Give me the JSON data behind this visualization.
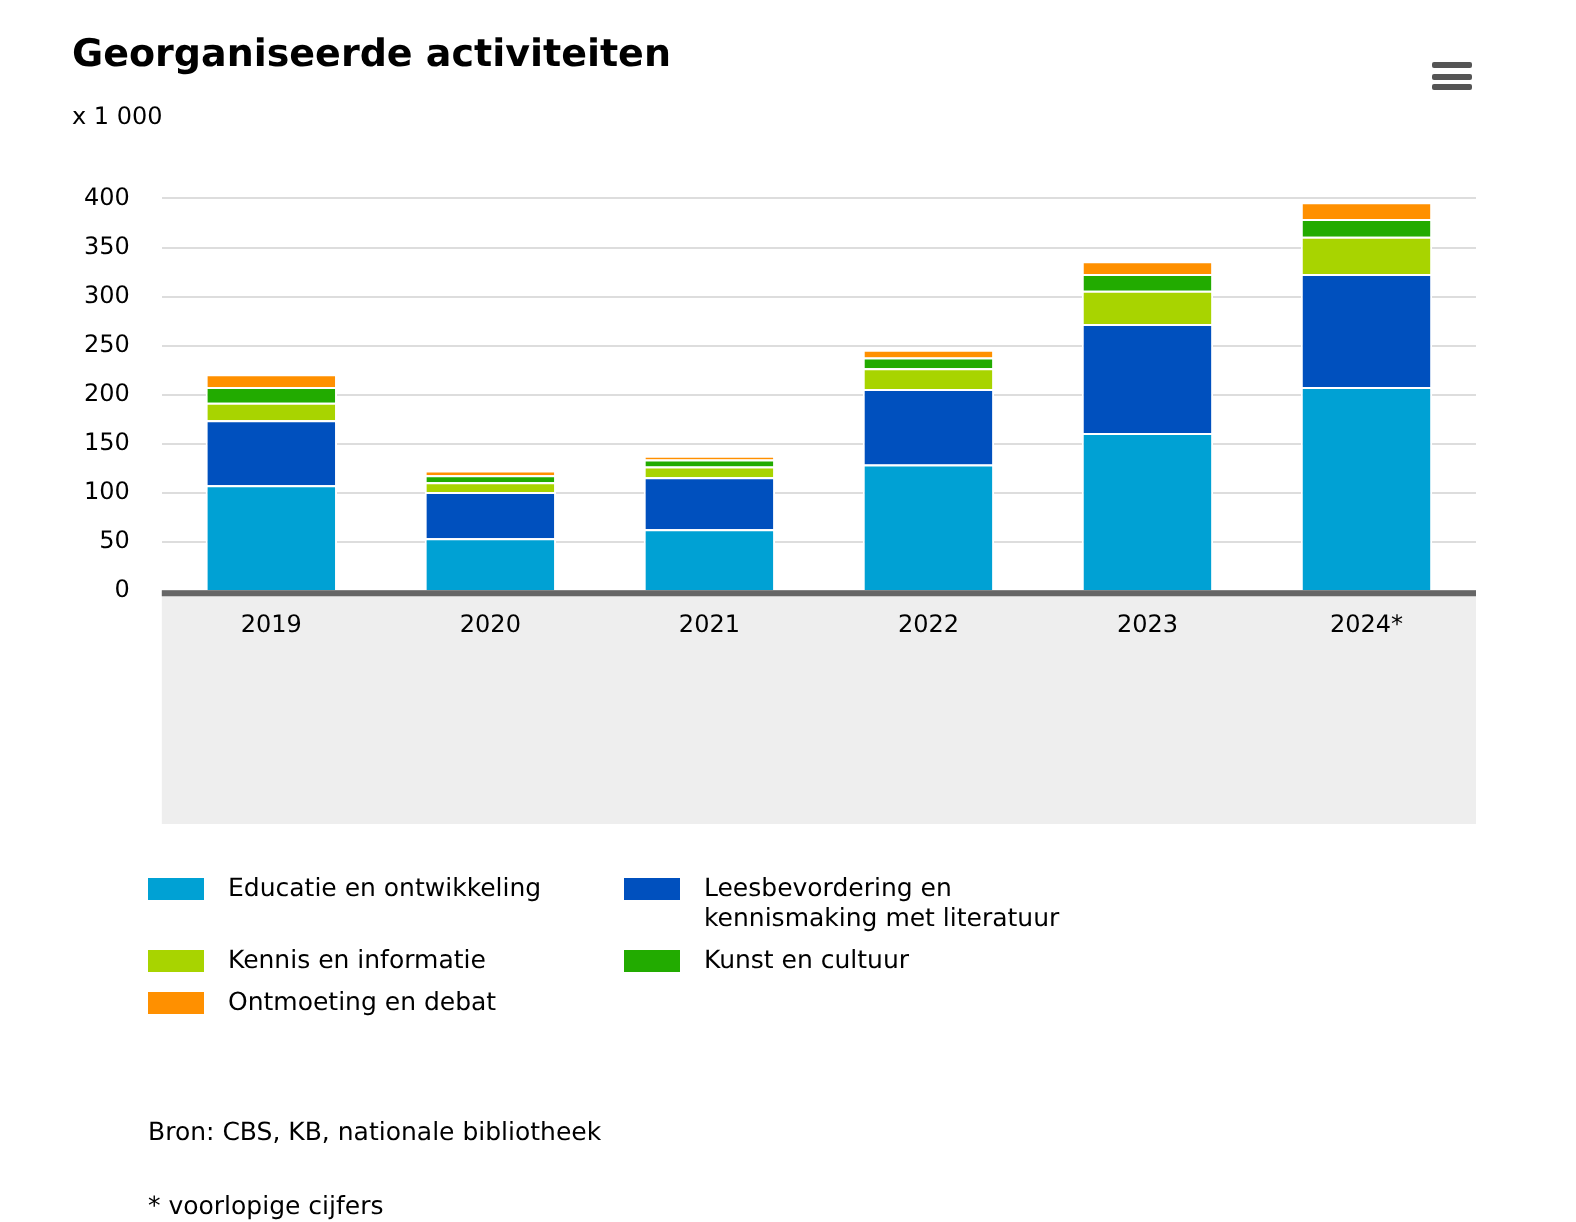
{
  "chart_data": {
    "type": "bar",
    "title": "Georganiseerde activiteiten",
    "ylabel": "x 1 000",
    "categories": [
      "2019",
      "2020",
      "2021",
      "2022",
      "2023",
      "2024*"
    ],
    "stacked": true,
    "ylim": [
      0,
      400
    ],
    "yticks": [
      0,
      50,
      100,
      150,
      200,
      250,
      300,
      350,
      400
    ],
    "grid": "y",
    "legend": "bottom",
    "series": [
      {
        "name": "Educatie en ontwikkeling",
        "color": "#00a1d4",
        "values": [
          108,
          54,
          63,
          129,
          161,
          208
        ]
      },
      {
        "name": "Leesbevordering en kennismaking met literatuur",
        "color": "#0050be",
        "values": [
          66,
          47,
          53,
          77,
          111,
          115
        ]
      },
      {
        "name": "Kennis en informatie",
        "color": "#a8d400",
        "values": [
          18,
          10,
          11,
          21,
          34,
          38
        ]
      },
      {
        "name": "Kunst en cultuur",
        "color": "#22ab00",
        "values": [
          16,
          7,
          7,
          11,
          17,
          18
        ]
      },
      {
        "name": "Ontmoeting en debat",
        "color": "#ff9000",
        "values": [
          13,
          5,
          4,
          8,
          13,
          17
        ]
      }
    ],
    "annotations": [
      "Bron: CBS, KB, nationale bibliotheek",
      "* voorlopige cijfers"
    ]
  }
}
